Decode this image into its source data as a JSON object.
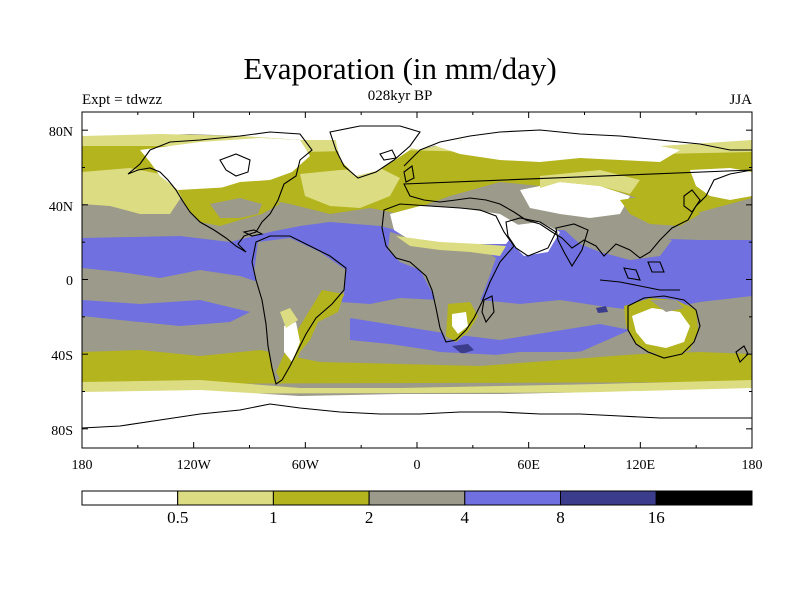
{
  "title": "Evaporation (in mm/day)",
  "subtitle": "028kyr BP",
  "left_string": "Expt = tdwzz",
  "right_string": "JJA",
  "x_tick_labels": [
    "180",
    "120W",
    "60W",
    "0",
    "60E",
    "120E",
    "180"
  ],
  "y_tick_labels": [
    "80N",
    "40N",
    "0",
    "40S",
    "80S"
  ],
  "colorbar": {
    "levels": [
      "0.5",
      "1",
      "2",
      "4",
      "8",
      "16"
    ],
    "colors": [
      "#ffffff",
      "#dcdc82",
      "#b4b41e",
      "#9c9a8a",
      "#7070e0",
      "#3c3c8c",
      "#000000"
    ]
  },
  "palette": {
    "lt0_5": "#ffffff",
    "r0_5_1": "#dcdc82",
    "r1_2": "#b4b41e",
    "r2_4": "#9c9a8a",
    "r4_8": "#7070e0",
    "r8_16": "#3c3c8c",
    "gt16": "#000000",
    "coast": "#000000"
  }
}
